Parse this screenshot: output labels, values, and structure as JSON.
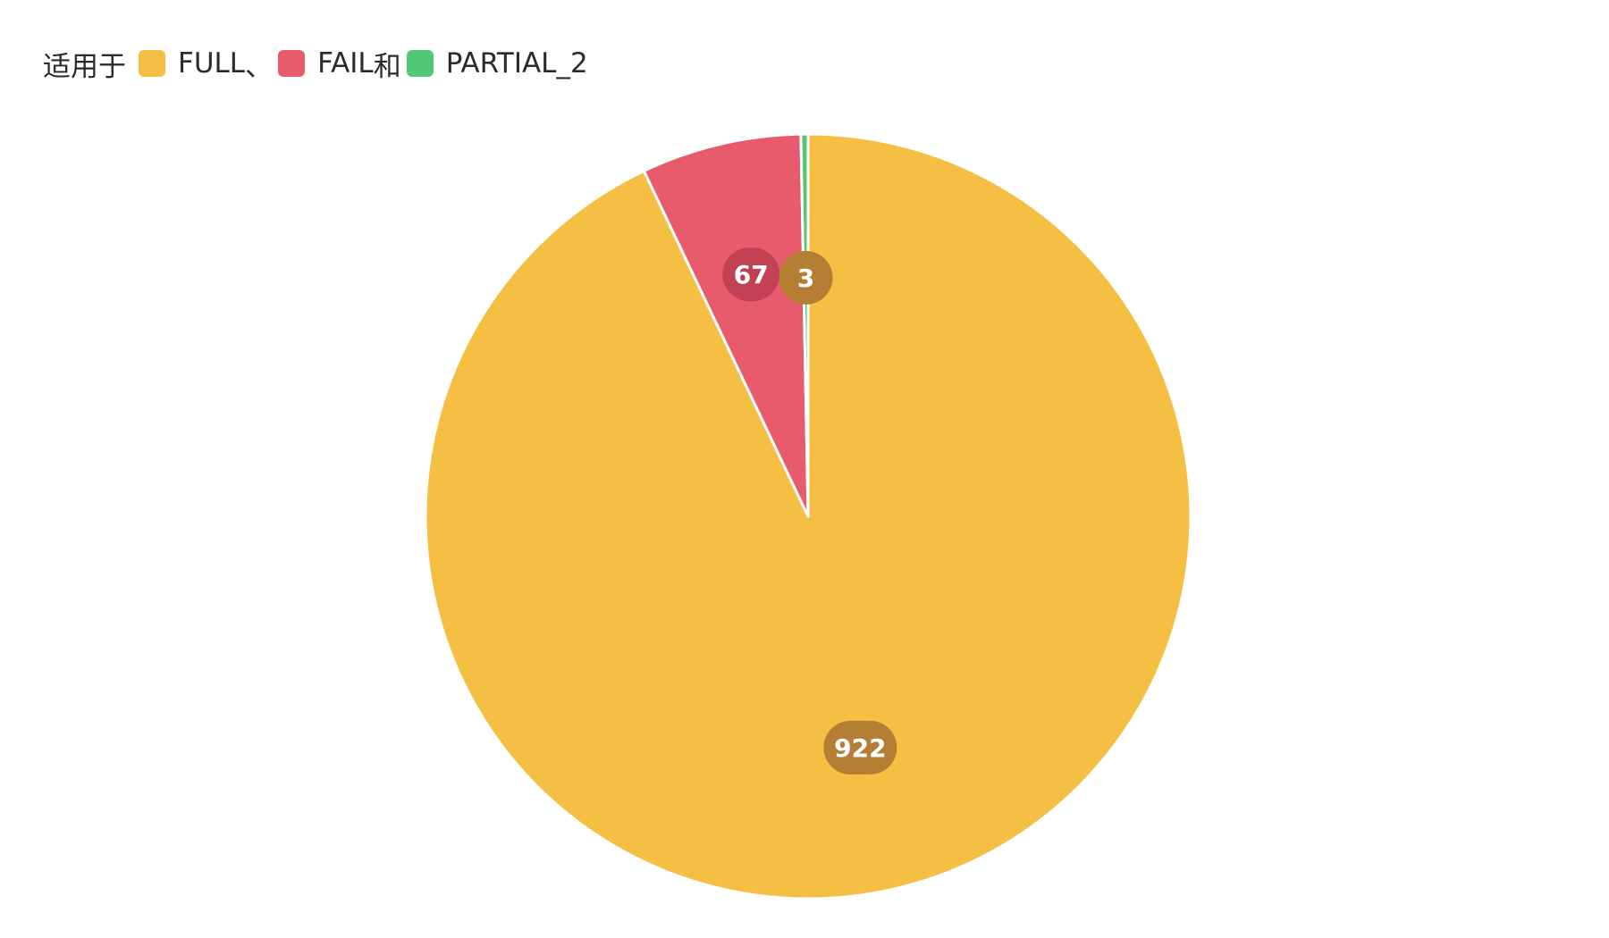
{
  "legend": {
    "prefix": "适用于",
    "items": [
      {
        "label": "FULL",
        "sep": "、"
      },
      {
        "label": "FAIL",
        "sep": "和"
      },
      {
        "label": "PARTIAL_2",
        "sep": ""
      }
    ]
  },
  "chart_data": {
    "type": "pie",
    "categories": [
      "FULL",
      "FAIL",
      "PARTIAL_2"
    ],
    "values": [
      922,
      67,
      3
    ],
    "colors": [
      "#F4BF42",
      "#E85B6C",
      "#52C776"
    ],
    "label_colors": [
      "#B47E35",
      "#C24253",
      "#B47E35"
    ],
    "start": "12 o'clock",
    "direction": "clockwise",
    "data_labels": [
      "922",
      "67",
      "3"
    ]
  }
}
